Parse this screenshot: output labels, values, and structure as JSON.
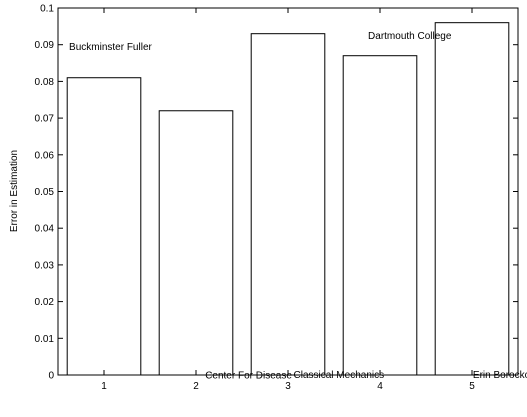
{
  "chart_data": {
    "type": "bar",
    "categories": [
      "1",
      "2",
      "3",
      "4",
      "5"
    ],
    "values": [
      0.081,
      0.072,
      0.093,
      0.087,
      0.096
    ],
    "title": "",
    "xlabel": "",
    "ylabel": "Error in Estimation",
    "ylim": [
      0,
      0.1
    ],
    "xlim": [
      0.5,
      5.5
    ],
    "yticks": [
      "0",
      "0.01",
      "0.02",
      "0.03",
      "0.04",
      "0.05",
      "0.06",
      "0.07",
      "0.08",
      "0.09",
      "0.1"
    ],
    "grid": false,
    "bar_fill": "#ffffff",
    "bar_stroke": "#000000",
    "annotations": [
      {
        "text": "Buckminster Fuller",
        "x": 0.62,
        "y": 0.0885
      },
      {
        "text": "Dartmouth College",
        "x": 3.87,
        "y": 0.0915
      },
      {
        "text": "Center For Disease",
        "x": 2.1,
        "y": -0.0009
      },
      {
        "text": "Classical Mechanics",
        "x": 3.06,
        "y": -0.0008
      },
      {
        "text": "Erin Borockowich",
        "x": 5.01,
        "y": -0.0008
      }
    ]
  }
}
